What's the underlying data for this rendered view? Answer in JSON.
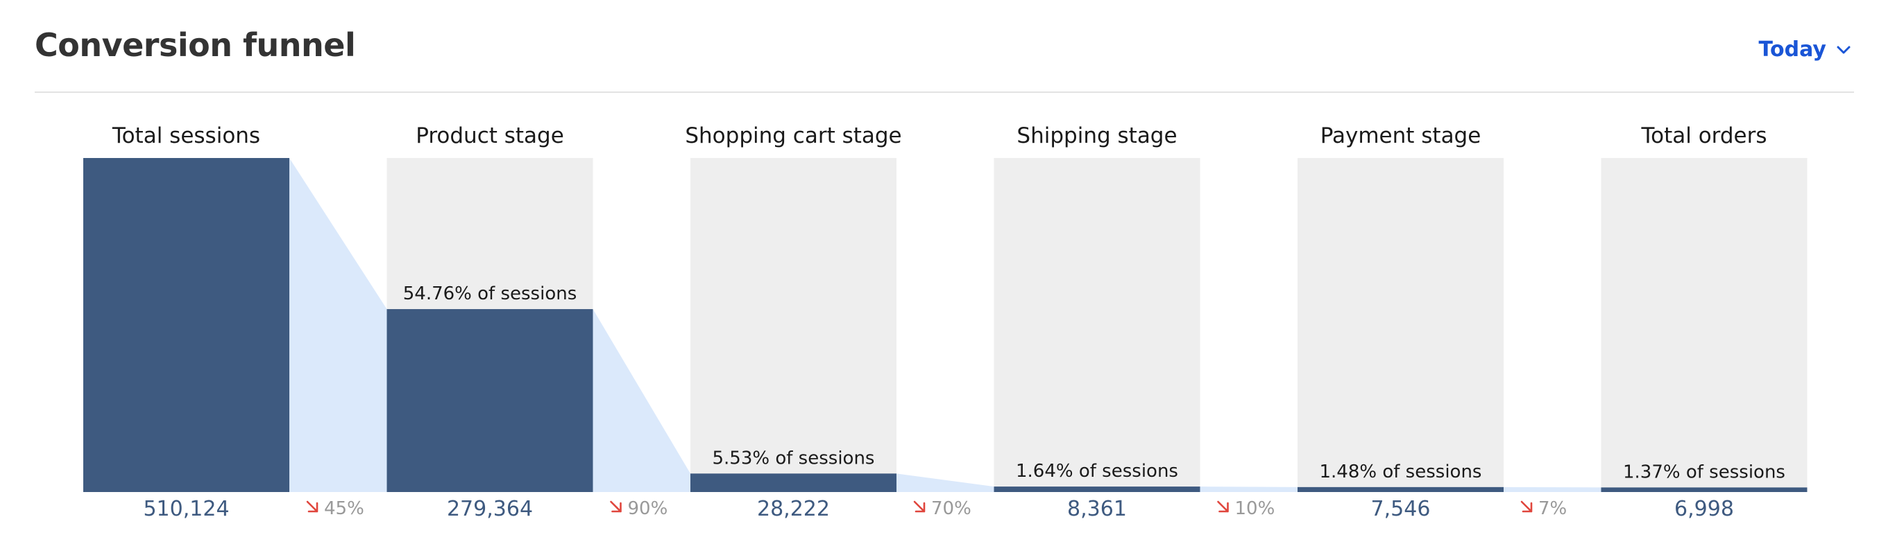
{
  "header": {
    "title": "Conversion funnel",
    "range_label": "Today"
  },
  "colors": {
    "bar": "#3e5a80",
    "track": "#eeeeee",
    "connector": "#dbe9fb",
    "value_text": "#3e5a80",
    "label_text": "#1a1a1a",
    "drop_arrow": "#e0463d",
    "drop_text": "#999999"
  },
  "chart_data": {
    "type": "bar",
    "categories": [
      "Total sessions",
      "Product stage",
      "Shopping cart stage",
      "Shipping stage",
      "Payment stage",
      "Total orders"
    ],
    "values": [
      510124,
      279364,
      28222,
      8361,
      7546,
      6998
    ],
    "value_labels": [
      "510,124",
      "279,364",
      "28,222",
      "8,361",
      "7,546",
      "6,998"
    ],
    "percent_labels": [
      "",
      "54.76% of sessions",
      "5.53% of sessions",
      "1.64% of sessions",
      "1.48% of sessions",
      "1.37% of sessions"
    ],
    "drop_labels": [
      "45%",
      "90%",
      "70%",
      "10%",
      "7%"
    ],
    "ylim": [
      0,
      510124
    ],
    "grid": false
  }
}
